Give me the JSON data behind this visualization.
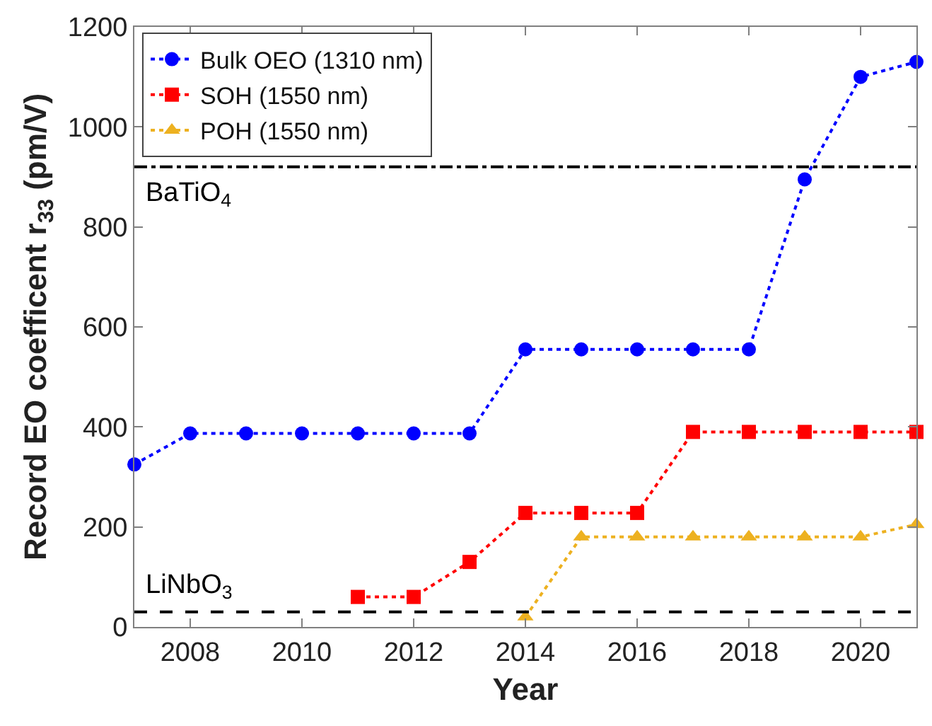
{
  "chart_data": {
    "type": "line",
    "xlabel": "Year",
    "ylabel": "Record EO coefficent r$_{33}$ (pm/V)",
    "x": [
      2007,
      2008,
      2009,
      2010,
      2011,
      2012,
      2013,
      2014,
      2015,
      2016,
      2017,
      2018,
      2019,
      2020,
      2021
    ],
    "series": [
      {
        "name": "Bulk OEO (1310 nm)",
        "color": "#0000ff",
        "marker": "circle",
        "values": [
          325,
          387,
          387,
          387,
          387,
          387,
          387,
          555,
          555,
          555,
          555,
          555,
          895,
          1100,
          1130
        ]
      },
      {
        "name": "SOH (1550 nm)",
        "color": "#ff0000",
        "marker": "square",
        "values": [
          null,
          null,
          null,
          null,
          60,
          60,
          130,
          228,
          228,
          228,
          390,
          390,
          390,
          390,
          390
        ]
      },
      {
        "name": "POH (1550 nm)",
        "color": "#edb120",
        "marker": "triangle",
        "values": [
          null,
          null,
          null,
          null,
          null,
          null,
          null,
          20,
          180,
          180,
          180,
          180,
          180,
          180,
          205
        ]
      }
    ],
    "line_style": "dotted",
    "xlim": [
      2007,
      2021
    ],
    "xticks": [
      2008,
      2010,
      2012,
      2014,
      2016,
      2018,
      2020
    ],
    "ylim": [
      0,
      1200
    ],
    "yticks": [
      0,
      200,
      400,
      600,
      800,
      1000,
      1200
    ],
    "ref_lines": [
      {
        "axis": "y",
        "value": 920,
        "label": "BaTiO$_{4}$",
        "color": "#000000",
        "line_style": "dashdot"
      },
      {
        "axis": "y",
        "value": 30,
        "label": "LiNbO$_{3}$",
        "color": "#000000",
        "line_style": "dashed"
      }
    ],
    "legend": "top left"
  }
}
